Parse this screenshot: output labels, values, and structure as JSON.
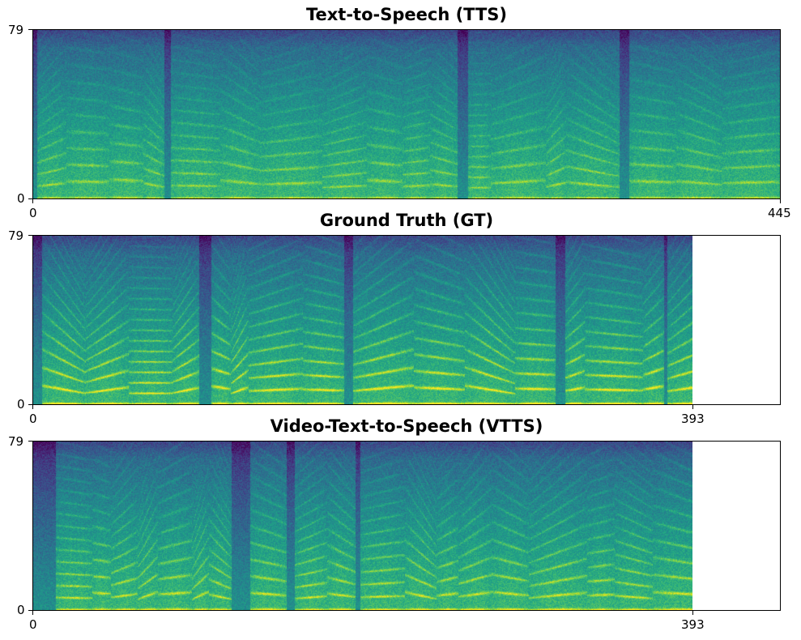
{
  "chart_data": [
    {
      "type": "heatmap",
      "title": "Text-to-Speech (TTS)",
      "colormap": "viridis",
      "x_ticks": [
        "0",
        "445"
      ],
      "y_ticks": [
        "0",
        "79"
      ],
      "xlim": [
        0,
        445
      ],
      "ylim": [
        0,
        79
      ],
      "n_frames": 445,
      "n_mel_bins": 80,
      "seed": 11,
      "harmonic_strength": 0.55
    },
    {
      "type": "heatmap",
      "title": "Ground Truth (GT)",
      "colormap": "viridis",
      "x_ticks": [
        "0",
        "393"
      ],
      "y_ticks": [
        "0",
        "79"
      ],
      "xlim": [
        0,
        445
      ],
      "ylim": [
        0,
        79
      ],
      "n_frames": 393,
      "n_mel_bins": 80,
      "seed": 23,
      "harmonic_strength": 0.95
    },
    {
      "type": "heatmap",
      "title": "Video-Text-to-Speech (VTTS)",
      "colormap": "viridis",
      "x_ticks": [
        "0",
        "393"
      ],
      "y_ticks": [
        "0",
        "79"
      ],
      "xlim": [
        0,
        445
      ],
      "ylim": [
        0,
        79
      ],
      "n_frames": 393,
      "n_mel_bins": 80,
      "seed": 37,
      "harmonic_strength": 0.75
    }
  ]
}
